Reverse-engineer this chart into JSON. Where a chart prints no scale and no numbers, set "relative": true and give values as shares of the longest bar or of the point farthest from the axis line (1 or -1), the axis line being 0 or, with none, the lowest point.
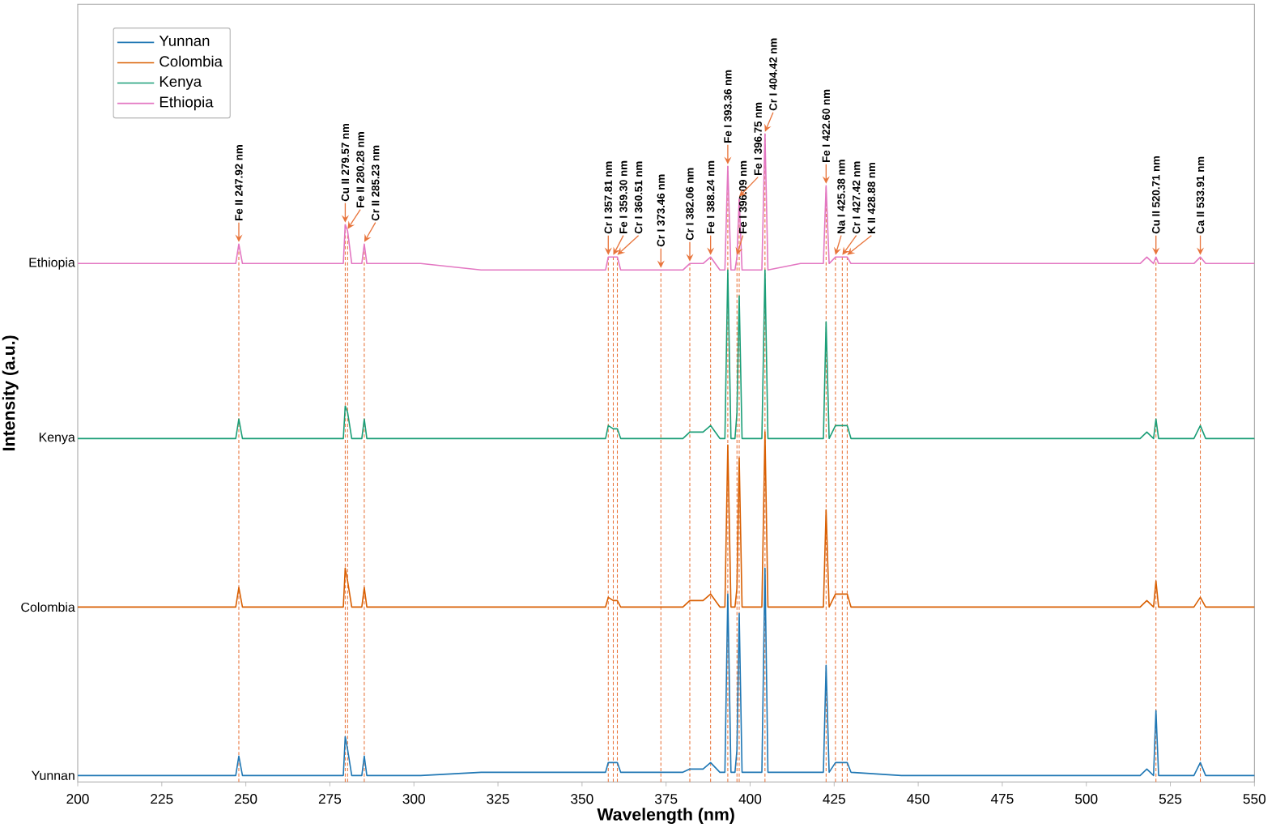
{
  "chart_data": {
    "type": "line",
    "relative": true,
    "xlabel": "Wavelength (nm)",
    "ylabel": "Intensity (a.u.)",
    "xlim": [
      200,
      550
    ],
    "xticks": [
      200,
      225,
      250,
      275,
      300,
      325,
      350,
      375,
      400,
      425,
      450,
      475,
      500,
      525,
      550
    ],
    "legend": "top left",
    "marker": "none",
    "line_style": "solid",
    "x": [
      200,
      230,
      247.0,
      247.92,
      249,
      270,
      279.0,
      279.57,
      280.28,
      281.5,
      284.5,
      285.23,
      286,
      300,
      302,
      320,
      340,
      344,
      357.0,
      357.81,
      359.3,
      360.51,
      361.5,
      373.46,
      380,
      382.06,
      386,
      388.24,
      391,
      392.5,
      393.36,
      394.3,
      395.5,
      396.09,
      396.75,
      397.6,
      403.5,
      404.42,
      405.3,
      415,
      421.8,
      422.6,
      423.5,
      425.38,
      427.42,
      428.88,
      430,
      445,
      470,
      500,
      516,
      518,
      520.0,
      520.71,
      521.5,
      532,
      533.91,
      535.5,
      550
    ],
    "series": [
      {
        "name": "Yunnan",
        "color": "#1f77b4",
        "values": [
          0.01,
          0.01,
          0.01,
          0.04,
          0.01,
          0.01,
          0.01,
          0.07,
          0.05,
          0.01,
          0.01,
          0.04,
          0.01,
          0.01,
          0.01,
          0.015,
          0.015,
          0.015,
          0.015,
          0.03,
          0.03,
          0.03,
          0.015,
          0.015,
          0.015,
          0.02,
          0.02,
          0.03,
          0.015,
          0.015,
          0.29,
          0.015,
          0.015,
          0.05,
          0.26,
          0.015,
          0.015,
          0.33,
          0.015,
          0.015,
          0.015,
          0.18,
          0.015,
          0.03,
          0.03,
          0.03,
          0.015,
          0.01,
          0.01,
          0.01,
          0.01,
          0.02,
          0.01,
          0.11,
          0.01,
          0.01,
          0.03,
          0.01,
          0.01
        ]
      },
      {
        "name": "Colombia",
        "color": "#d95f02",
        "values": [
          0.27,
          0.27,
          0.27,
          0.3,
          0.27,
          0.27,
          0.27,
          0.33,
          0.31,
          0.27,
          0.27,
          0.3,
          0.27,
          0.27,
          0.27,
          0.27,
          0.27,
          0.27,
          0.27,
          0.285,
          0.28,
          0.28,
          0.27,
          0.27,
          0.27,
          0.28,
          0.28,
          0.29,
          0.27,
          0.27,
          0.52,
          0.27,
          0.27,
          0.3,
          0.5,
          0.27,
          0.27,
          0.54,
          0.27,
          0.27,
          0.27,
          0.42,
          0.27,
          0.29,
          0.29,
          0.29,
          0.27,
          0.27,
          0.27,
          0.27,
          0.27,
          0.28,
          0.27,
          0.31,
          0.27,
          0.27,
          0.285,
          0.27,
          0.27
        ]
      },
      {
        "name": "Kenya",
        "color": "#1b9e77",
        "values": [
          0.53,
          0.53,
          0.53,
          0.56,
          0.53,
          0.53,
          0.53,
          0.58,
          0.57,
          0.53,
          0.53,
          0.56,
          0.53,
          0.53,
          0.53,
          0.53,
          0.53,
          0.53,
          0.53,
          0.55,
          0.545,
          0.545,
          0.53,
          0.53,
          0.53,
          0.54,
          0.54,
          0.55,
          0.53,
          0.53,
          0.79,
          0.53,
          0.53,
          0.57,
          0.75,
          0.53,
          0.53,
          0.79,
          0.53,
          0.53,
          0.53,
          0.71,
          0.53,
          0.55,
          0.55,
          0.55,
          0.53,
          0.53,
          0.53,
          0.53,
          0.53,
          0.54,
          0.53,
          0.56,
          0.53,
          0.53,
          0.55,
          0.53,
          0.53
        ]
      },
      {
        "name": "Ethiopia",
        "color": "#e377c2",
        "values": [
          0.8,
          0.8,
          0.8,
          0.83,
          0.8,
          0.8,
          0.8,
          0.86,
          0.85,
          0.8,
          0.8,
          0.83,
          0.8,
          0.8,
          0.8,
          0.79,
          0.79,
          0.79,
          0.79,
          0.81,
          0.81,
          0.81,
          0.79,
          0.79,
          0.79,
          0.8,
          0.8,
          0.81,
          0.79,
          0.79,
          0.95,
          0.79,
          0.79,
          0.81,
          0.9,
          0.79,
          0.79,
          1,
          0.79,
          0.8,
          0.8,
          0.92,
          0.8,
          0.81,
          0.81,
          0.81,
          0.8,
          0.8,
          0.8,
          0.8,
          0.8,
          0.81,
          0.8,
          0.81,
          0.8,
          0.8,
          0.81,
          0.8,
          0.8
        ]
      }
    ],
    "ref_lines": [
      {
        "axis": "x",
        "value": 247.92,
        "label": "Fe II 247.92 nm",
        "color": "#e8743b",
        "line_style": "dashed"
      },
      {
        "axis": "x",
        "value": 279.57,
        "label": "Cu II 279.57 nm",
        "color": "#e8743b",
        "line_style": "dashed"
      },
      {
        "axis": "x",
        "value": 280.28,
        "label": "Fe II 280.28 nm",
        "color": "#e8743b",
        "line_style": "dashed"
      },
      {
        "axis": "x",
        "value": 285.23,
        "label": "Cr II 285.23 nm",
        "color": "#e8743b",
        "line_style": "dashed"
      },
      {
        "axis": "x",
        "value": 357.81,
        "label": "Cr I 357.81 nm",
        "color": "#e8743b",
        "line_style": "dashed"
      },
      {
        "axis": "x",
        "value": 359.3,
        "label": "Fe I 359.30 nm",
        "color": "#e8743b",
        "line_style": "dashed"
      },
      {
        "axis": "x",
        "value": 360.51,
        "label": "Cr I 360.51 nm",
        "color": "#e8743b",
        "line_style": "dashed"
      },
      {
        "axis": "x",
        "value": 373.46,
        "label": "Cr I 373.46 nm",
        "color": "#e8743b",
        "line_style": "dashed"
      },
      {
        "axis": "x",
        "value": 382.06,
        "label": "Cr I 382.06 nm",
        "color": "#e8743b",
        "line_style": "dashed"
      },
      {
        "axis": "x",
        "value": 388.24,
        "label": "Fe I 388.24 nm",
        "color": "#e8743b",
        "line_style": "dashed"
      },
      {
        "axis": "x",
        "value": 393.36,
        "label": "Fe I 393.36 nm",
        "color": "#e8743b",
        "line_style": "dashed"
      },
      {
        "axis": "x",
        "value": 396.09,
        "label": "Fe I 396.09 nm",
        "color": "#e8743b",
        "line_style": "dashed"
      },
      {
        "axis": "x",
        "value": 396.75,
        "label": "Fe I 396.75 nm",
        "color": "#e8743b",
        "line_style": "dashed"
      },
      {
        "axis": "x",
        "value": 404.42,
        "label": "Cr I 404.42 nm",
        "color": "#e8743b",
        "line_style": "dashed"
      },
      {
        "axis": "x",
        "value": 422.6,
        "label": "Fe I 422.60 nm",
        "color": "#e8743b",
        "line_style": "dashed"
      },
      {
        "axis": "x",
        "value": 425.38,
        "label": "Na I 425.38 nm",
        "color": "#e8743b",
        "line_style": "dashed"
      },
      {
        "axis": "x",
        "value": 427.42,
        "label": "Cr I 427.42 nm",
        "color": "#e8743b",
        "line_style": "dashed"
      },
      {
        "axis": "x",
        "value": 428.88,
        "label": "K II 428.88 nm",
        "color": "#e8743b",
        "line_style": "dashed"
      },
      {
        "axis": "x",
        "value": 520.71,
        "label": "Cu II 520.71 nm",
        "color": "#e8743b",
        "line_style": "dashed"
      },
      {
        "axis": "x",
        "value": 533.91,
        "label": "Ca II 533.91 nm",
        "color": "#e8743b",
        "line_style": "dashed"
      }
    ]
  }
}
